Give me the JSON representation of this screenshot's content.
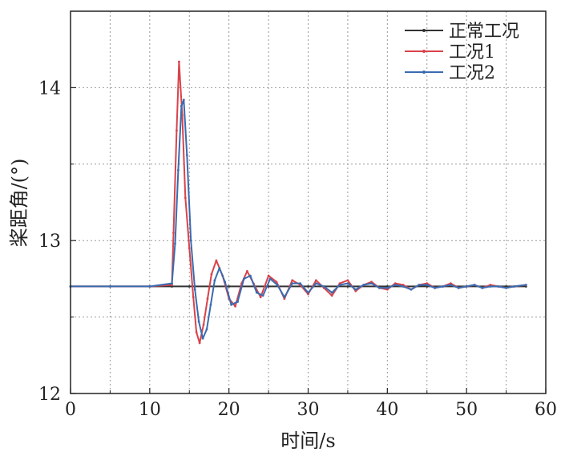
{
  "chart_data": {
    "type": "line",
    "title": "",
    "xlabel": "时间/s",
    "ylabel": "桨距角/(°)",
    "xlim": [
      0,
      60
    ],
    "ylim": [
      12,
      14.5
    ],
    "xticks": [
      0,
      10,
      20,
      30,
      40,
      50,
      60
    ],
    "yticks": [
      12,
      13,
      14
    ],
    "xtick_labels": [
      "0",
      "10",
      "20",
      "30",
      "40",
      "50",
      "60"
    ],
    "ytick_labels": [
      "12",
      "13",
      "14"
    ],
    "grid": true,
    "legend_position": "top-right",
    "series": [
      {
        "name": "正常工况",
        "color": "#333333",
        "x": [
          0,
          5,
          10,
          12.8,
          15,
          20,
          25,
          30,
          35,
          40,
          45,
          50,
          55,
          57.5
        ],
        "y": [
          12.7,
          12.7,
          12.7,
          12.7,
          12.7,
          12.7,
          12.7,
          12.7,
          12.7,
          12.7,
          12.7,
          12.7,
          12.7,
          12.7
        ]
      },
      {
        "name": "工况1",
        "color": "#d9434a",
        "x": [
          0,
          5,
          10,
          12.8,
          13.0,
          13.4,
          13.7,
          14.1,
          14.5,
          15.0,
          15.5,
          15.9,
          16.3,
          16.8,
          17.3,
          17.8,
          18.4,
          19.2,
          20.0,
          20.8,
          21.6,
          22.3,
          23.1,
          24.0,
          25.0,
          26.0,
          27.0,
          28.0,
          29.0,
          30.0,
          31.0,
          32.0,
          33.0,
          34.0,
          35.0,
          36.0,
          37.0,
          38.0,
          39.0,
          40.0,
          41.0,
          42.0,
          43.0,
          44.0,
          45.0,
          46.0,
          47.0,
          48.0,
          49.0,
          50.0,
          51.0,
          52.0,
          53.0,
          54.0,
          55.0,
          56.0,
          57.5
        ],
        "y": [
          12.7,
          12.7,
          12.7,
          12.71,
          13.05,
          13.72,
          14.17,
          13.82,
          13.28,
          12.95,
          12.63,
          12.4,
          12.33,
          12.45,
          12.62,
          12.78,
          12.87,
          12.77,
          12.62,
          12.57,
          12.72,
          12.8,
          12.72,
          12.63,
          12.77,
          12.73,
          12.62,
          12.74,
          12.71,
          12.65,
          12.74,
          12.69,
          12.64,
          12.72,
          12.74,
          12.67,
          12.71,
          12.73,
          12.69,
          12.68,
          12.72,
          12.71,
          12.68,
          12.71,
          12.72,
          12.69,
          12.7,
          12.72,
          12.69,
          12.7,
          12.71,
          12.69,
          12.71,
          12.7,
          12.69,
          12.7,
          12.71
        ]
      },
      {
        "name": "工况2",
        "color": "#3a6bb0",
        "x": [
          0,
          5,
          10,
          12.8,
          13.2,
          13.6,
          14.0,
          14.3,
          14.7,
          15.2,
          15.7,
          16.2,
          16.7,
          17.2,
          17.7,
          18.2,
          18.8,
          19.5,
          20.3,
          21.1,
          21.9,
          22.7,
          23.5,
          24.3,
          25.2,
          26.1,
          27.0,
          28.0,
          29.0,
          30.0,
          31.0,
          32.0,
          33.0,
          34.0,
          35.0,
          36.0,
          37.0,
          38.0,
          39.0,
          40.0,
          41.0,
          42.0,
          43.0,
          44.0,
          45.0,
          46.0,
          47.0,
          48.0,
          49.0,
          50.0,
          51.0,
          52.0,
          53.0,
          54.0,
          55.0,
          56.0,
          57.5
        ],
        "y": [
          12.7,
          12.7,
          12.7,
          12.72,
          12.98,
          13.46,
          13.88,
          13.92,
          13.56,
          13.0,
          12.68,
          12.47,
          12.36,
          12.42,
          12.58,
          12.74,
          12.82,
          12.73,
          12.58,
          12.6,
          12.75,
          12.77,
          12.66,
          12.64,
          12.75,
          12.71,
          12.63,
          12.72,
          12.72,
          12.66,
          12.72,
          12.7,
          12.66,
          12.71,
          12.72,
          12.68,
          12.71,
          12.72,
          12.69,
          12.69,
          12.71,
          12.7,
          12.68,
          12.71,
          12.71,
          12.69,
          12.7,
          12.71,
          12.69,
          12.7,
          12.71,
          12.69,
          12.7,
          12.7,
          12.69,
          12.7,
          12.71
        ]
      }
    ]
  }
}
